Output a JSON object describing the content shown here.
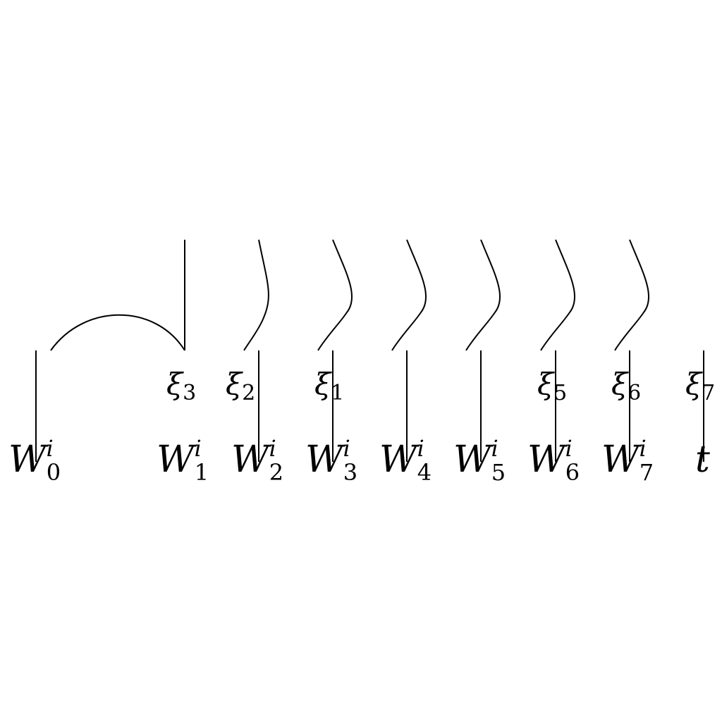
{
  "diagram": {
    "bottom_labels": [
      {
        "base": "W",
        "sup": "i",
        "sub": "0"
      },
      {
        "base": "W",
        "sup": "i",
        "sub": "1"
      },
      {
        "base": "W",
        "sup": "i",
        "sub": "2"
      },
      {
        "base": "W",
        "sup": "i",
        "sub": "3"
      },
      {
        "base": "W",
        "sup": "i",
        "sub": "4"
      },
      {
        "base": "W",
        "sup": "i",
        "sub": "5"
      },
      {
        "base": "W",
        "sup": "i",
        "sub": "6"
      },
      {
        "base": "W",
        "sup": "i",
        "sub": "7"
      },
      {
        "base": "t",
        "sup": "",
        "sub": ""
      }
    ],
    "middle_labels": [
      {
        "base": "ξ",
        "sub": "3"
      },
      {
        "base": "ξ",
        "sub": "2"
      },
      {
        "base": "ξ",
        "sub": "1"
      },
      {
        "base": "ξ",
        "sub": "5"
      },
      {
        "base": "ξ",
        "sub": "6"
      },
      {
        "base": "ξ",
        "sub": "7"
      }
    ]
  }
}
